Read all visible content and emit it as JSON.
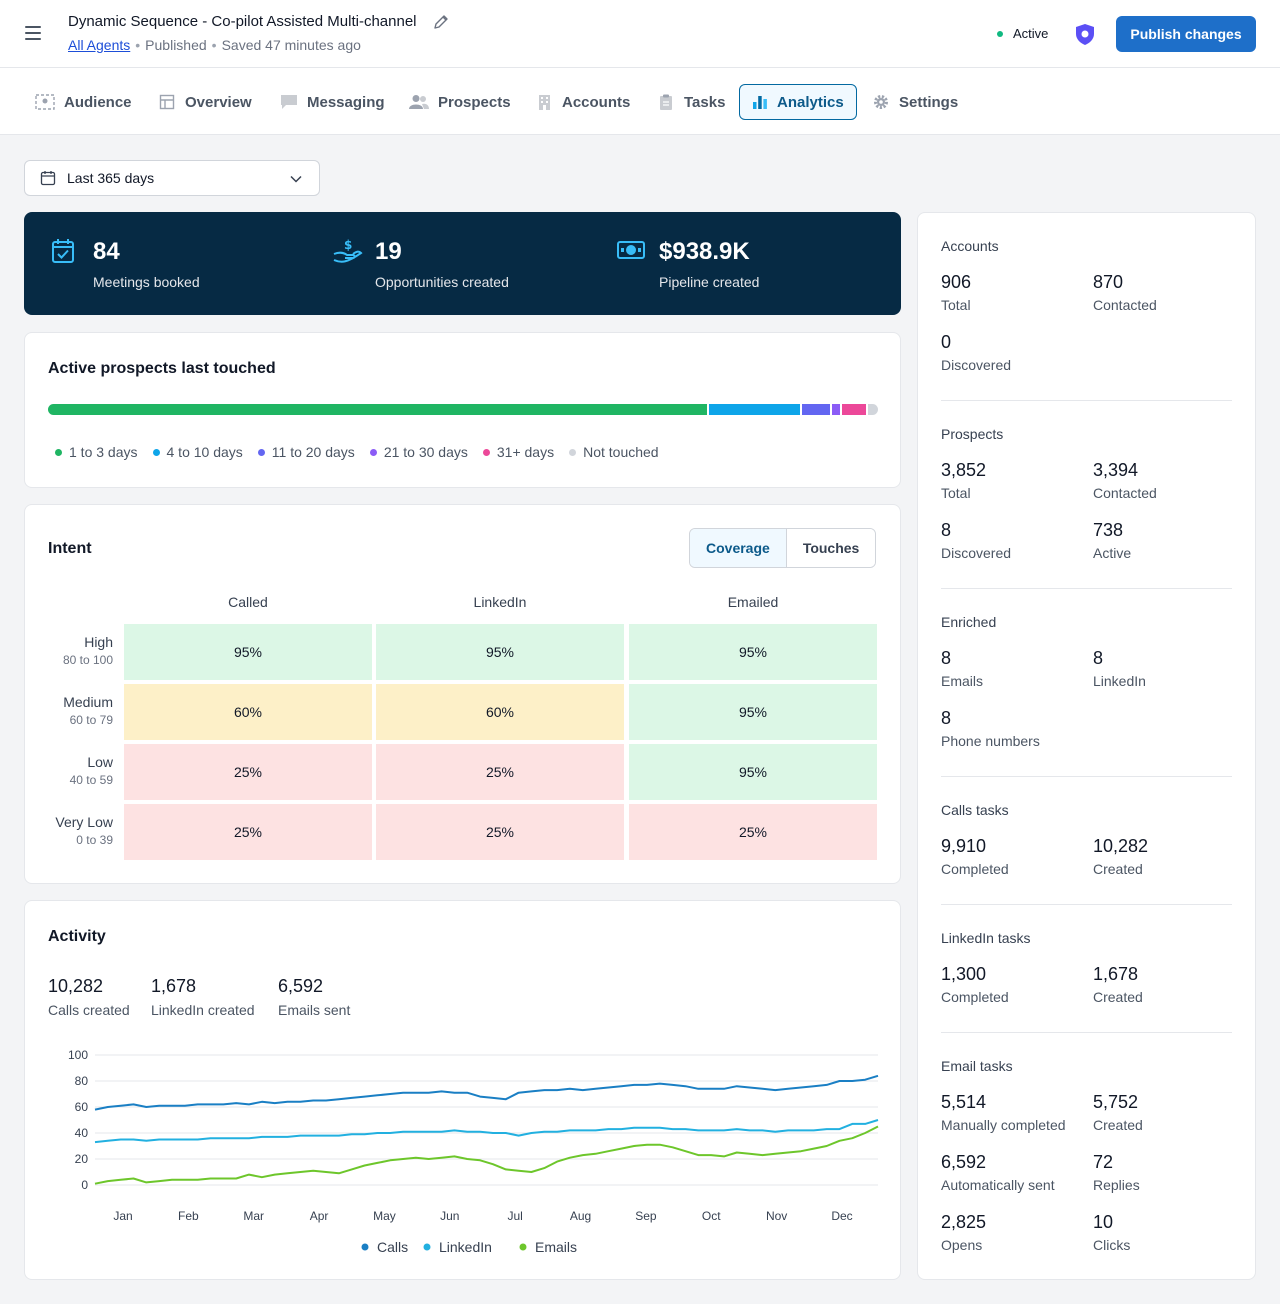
{
  "header": {
    "title": "Dynamic Sequence - Co-pilot Assisted Multi-channel",
    "breadcrumb_link": "All Agents",
    "published": "Published",
    "saved": "Saved 47 minutes ago",
    "status": "Active",
    "publish_label": "Publish changes"
  },
  "tabs": [
    {
      "label": "Audience",
      "icon": "audience-icon"
    },
    {
      "label": "Overview",
      "icon": "overview-icon"
    },
    {
      "label": "Messaging",
      "icon": "messaging-icon"
    },
    {
      "label": "Prospects",
      "icon": "prospects-icon"
    },
    {
      "label": "Accounts",
      "icon": "accounts-icon"
    },
    {
      "label": "Tasks",
      "icon": "tasks-icon"
    },
    {
      "label": "Analytics",
      "icon": "analytics-icon",
      "active": true
    },
    {
      "label": "Settings",
      "icon": "settings-icon"
    }
  ],
  "date_filter": {
    "value": "Last 365 days"
  },
  "kpis": [
    {
      "value": "84",
      "label": "Meetings booked",
      "icon": "calendar-check-icon"
    },
    {
      "value": "19",
      "label": "Opportunities created",
      "icon": "hand-dollar-icon"
    },
    {
      "value": "$938.9K",
      "label": "Pipeline created",
      "icon": "cash-icon"
    }
  ],
  "prospects_touched": {
    "title": "Active prospects last touched",
    "segments": [
      {
        "label": "1 to 3 days",
        "color": "#1fb563",
        "fraction": 0.797
      },
      {
        "label": "4 to 10 days",
        "color": "#0ea5e9",
        "fraction": 0.109
      },
      {
        "label": "11 to 20 days",
        "color": "#6366f1",
        "fraction": 0.034
      },
      {
        "label": "21 to 30 days",
        "color": "#8b5cf6",
        "fraction": 0.01
      },
      {
        "label": "31+ days",
        "color": "#ec4899",
        "fraction": 0.029
      },
      {
        "label": "Not touched",
        "color": "#d1d5db",
        "fraction": 0.012
      }
    ]
  },
  "intent": {
    "title": "Intent",
    "toggle": [
      "Coverage",
      "Touches"
    ],
    "columns": [
      "Called",
      "LinkedIn",
      "Emailed"
    ],
    "rows": [
      {
        "label": "High",
        "range": "80 to 100",
        "cells": [
          "95%",
          "95%",
          "95%"
        ],
        "levels": [
          "high",
          "high",
          "high"
        ]
      },
      {
        "label": "Medium",
        "range": "60 to 79",
        "cells": [
          "60%",
          "60%",
          "95%"
        ],
        "levels": [
          "mid",
          "mid",
          "high"
        ]
      },
      {
        "label": "Low",
        "range": "40 to 59",
        "cells": [
          "25%",
          "25%",
          "95%"
        ],
        "levels": [
          "low",
          "low",
          "high"
        ]
      },
      {
        "label": "Very Low",
        "range": "0 to 39",
        "cells": [
          "25%",
          "25%",
          "25%"
        ],
        "levels": [
          "low",
          "low",
          "low"
        ]
      }
    ],
    "colors": {
      "high": "#dcf7e6",
      "mid": "#fdf0c8",
      "low": "#fde2e2"
    }
  },
  "activity": {
    "title": "Activity",
    "stats": [
      {
        "value": "10,282",
        "label": "Calls created"
      },
      {
        "value": "1,678",
        "label": "LinkedIn created"
      },
      {
        "value": "6,592",
        "label": "Emails sent"
      }
    ]
  },
  "chart_data": {
    "type": "line",
    "x_labels": [
      "Jan",
      "Feb",
      "Mar",
      "Apr",
      "May",
      "Jun",
      "Jul",
      "Aug",
      "Sep",
      "Oct",
      "Nov",
      "Dec"
    ],
    "ylim": [
      0,
      100
    ],
    "yticks": [
      0,
      20,
      40,
      60,
      80,
      100
    ],
    "grid": true,
    "legend": "bottom",
    "series": [
      {
        "name": "Calls",
        "color": "#1a7fc4",
        "values": [
          58,
          60,
          61,
          62,
          60,
          61,
          61,
          61,
          62,
          62,
          62,
          63,
          62,
          64,
          63,
          64,
          64,
          65,
          65,
          66,
          67,
          68,
          69,
          70,
          71,
          71,
          71,
          72,
          71,
          71,
          68,
          67,
          66,
          71,
          72,
          73,
          73,
          74,
          73,
          74,
          75,
          76,
          77,
          77,
          78,
          77,
          76,
          74,
          74,
          74,
          76,
          75,
          74,
          73,
          74,
          75,
          76,
          77,
          80,
          80,
          81,
          84
        ]
      },
      {
        "name": "LinkedIn",
        "color": "#22b0e0",
        "values": [
          33,
          34,
          35,
          35,
          34,
          35,
          35,
          35,
          35,
          36,
          36,
          36,
          36,
          37,
          37,
          37,
          38,
          38,
          38,
          38,
          39,
          39,
          40,
          40,
          41,
          41,
          41,
          41,
          42,
          41,
          41,
          40,
          40,
          38,
          40,
          41,
          41,
          42,
          42,
          42,
          43,
          43,
          44,
          44,
          44,
          43,
          43,
          42,
          42,
          42,
          43,
          42,
          42,
          41,
          42,
          42,
          42,
          43,
          43,
          47,
          47,
          50
        ]
      },
      {
        "name": "Emails",
        "color": "#6dc62b",
        "values": [
          1,
          3,
          4,
          5,
          2,
          3,
          4,
          4,
          4,
          5,
          5,
          5,
          8,
          6,
          8,
          9,
          10,
          11,
          10,
          9,
          12,
          15,
          17,
          19,
          20,
          21,
          20,
          21,
          22,
          20,
          19,
          16,
          12,
          11,
          10,
          13,
          18,
          21,
          23,
          24,
          26,
          28,
          30,
          31,
          31,
          29,
          26,
          23,
          23,
          22,
          25,
          24,
          23,
          24,
          25,
          26,
          28,
          30,
          34,
          36,
          40,
          45
        ]
      }
    ]
  },
  "sidebar": [
    {
      "title": "Accounts",
      "stats": [
        {
          "value": "906",
          "label": "Total"
        },
        {
          "value": "870",
          "label": "Contacted"
        },
        {
          "value": "0",
          "label": "Discovered"
        }
      ]
    },
    {
      "title": "Prospects",
      "stats": [
        {
          "value": "3,852",
          "label": "Total"
        },
        {
          "value": "3,394",
          "label": "Contacted"
        },
        {
          "value": "8",
          "label": "Discovered"
        },
        {
          "value": "738",
          "label": "Active"
        }
      ]
    },
    {
      "title": "Enriched",
      "stats": [
        {
          "value": "8",
          "label": "Emails"
        },
        {
          "value": "8",
          "label": "LinkedIn"
        },
        {
          "value": "8",
          "label": "Phone numbers"
        }
      ]
    },
    {
      "title": "Calls tasks",
      "stats": [
        {
          "value": "9,910",
          "label": "Completed"
        },
        {
          "value": "10,282",
          "label": "Created"
        }
      ]
    },
    {
      "title": "LinkedIn tasks",
      "stats": [
        {
          "value": "1,300",
          "label": "Completed"
        },
        {
          "value": "1,678",
          "label": "Created"
        }
      ]
    },
    {
      "title": "Email tasks",
      "stats": [
        {
          "value": "5,514",
          "label": "Manually completed"
        },
        {
          "value": "5,752",
          "label": "Created"
        },
        {
          "value": "6,592",
          "label": "Automatically sent"
        },
        {
          "value": "72",
          "label": "Replies"
        },
        {
          "value": "2,825",
          "label": "Opens"
        },
        {
          "value": "10",
          "label": "Clicks"
        }
      ]
    }
  ]
}
